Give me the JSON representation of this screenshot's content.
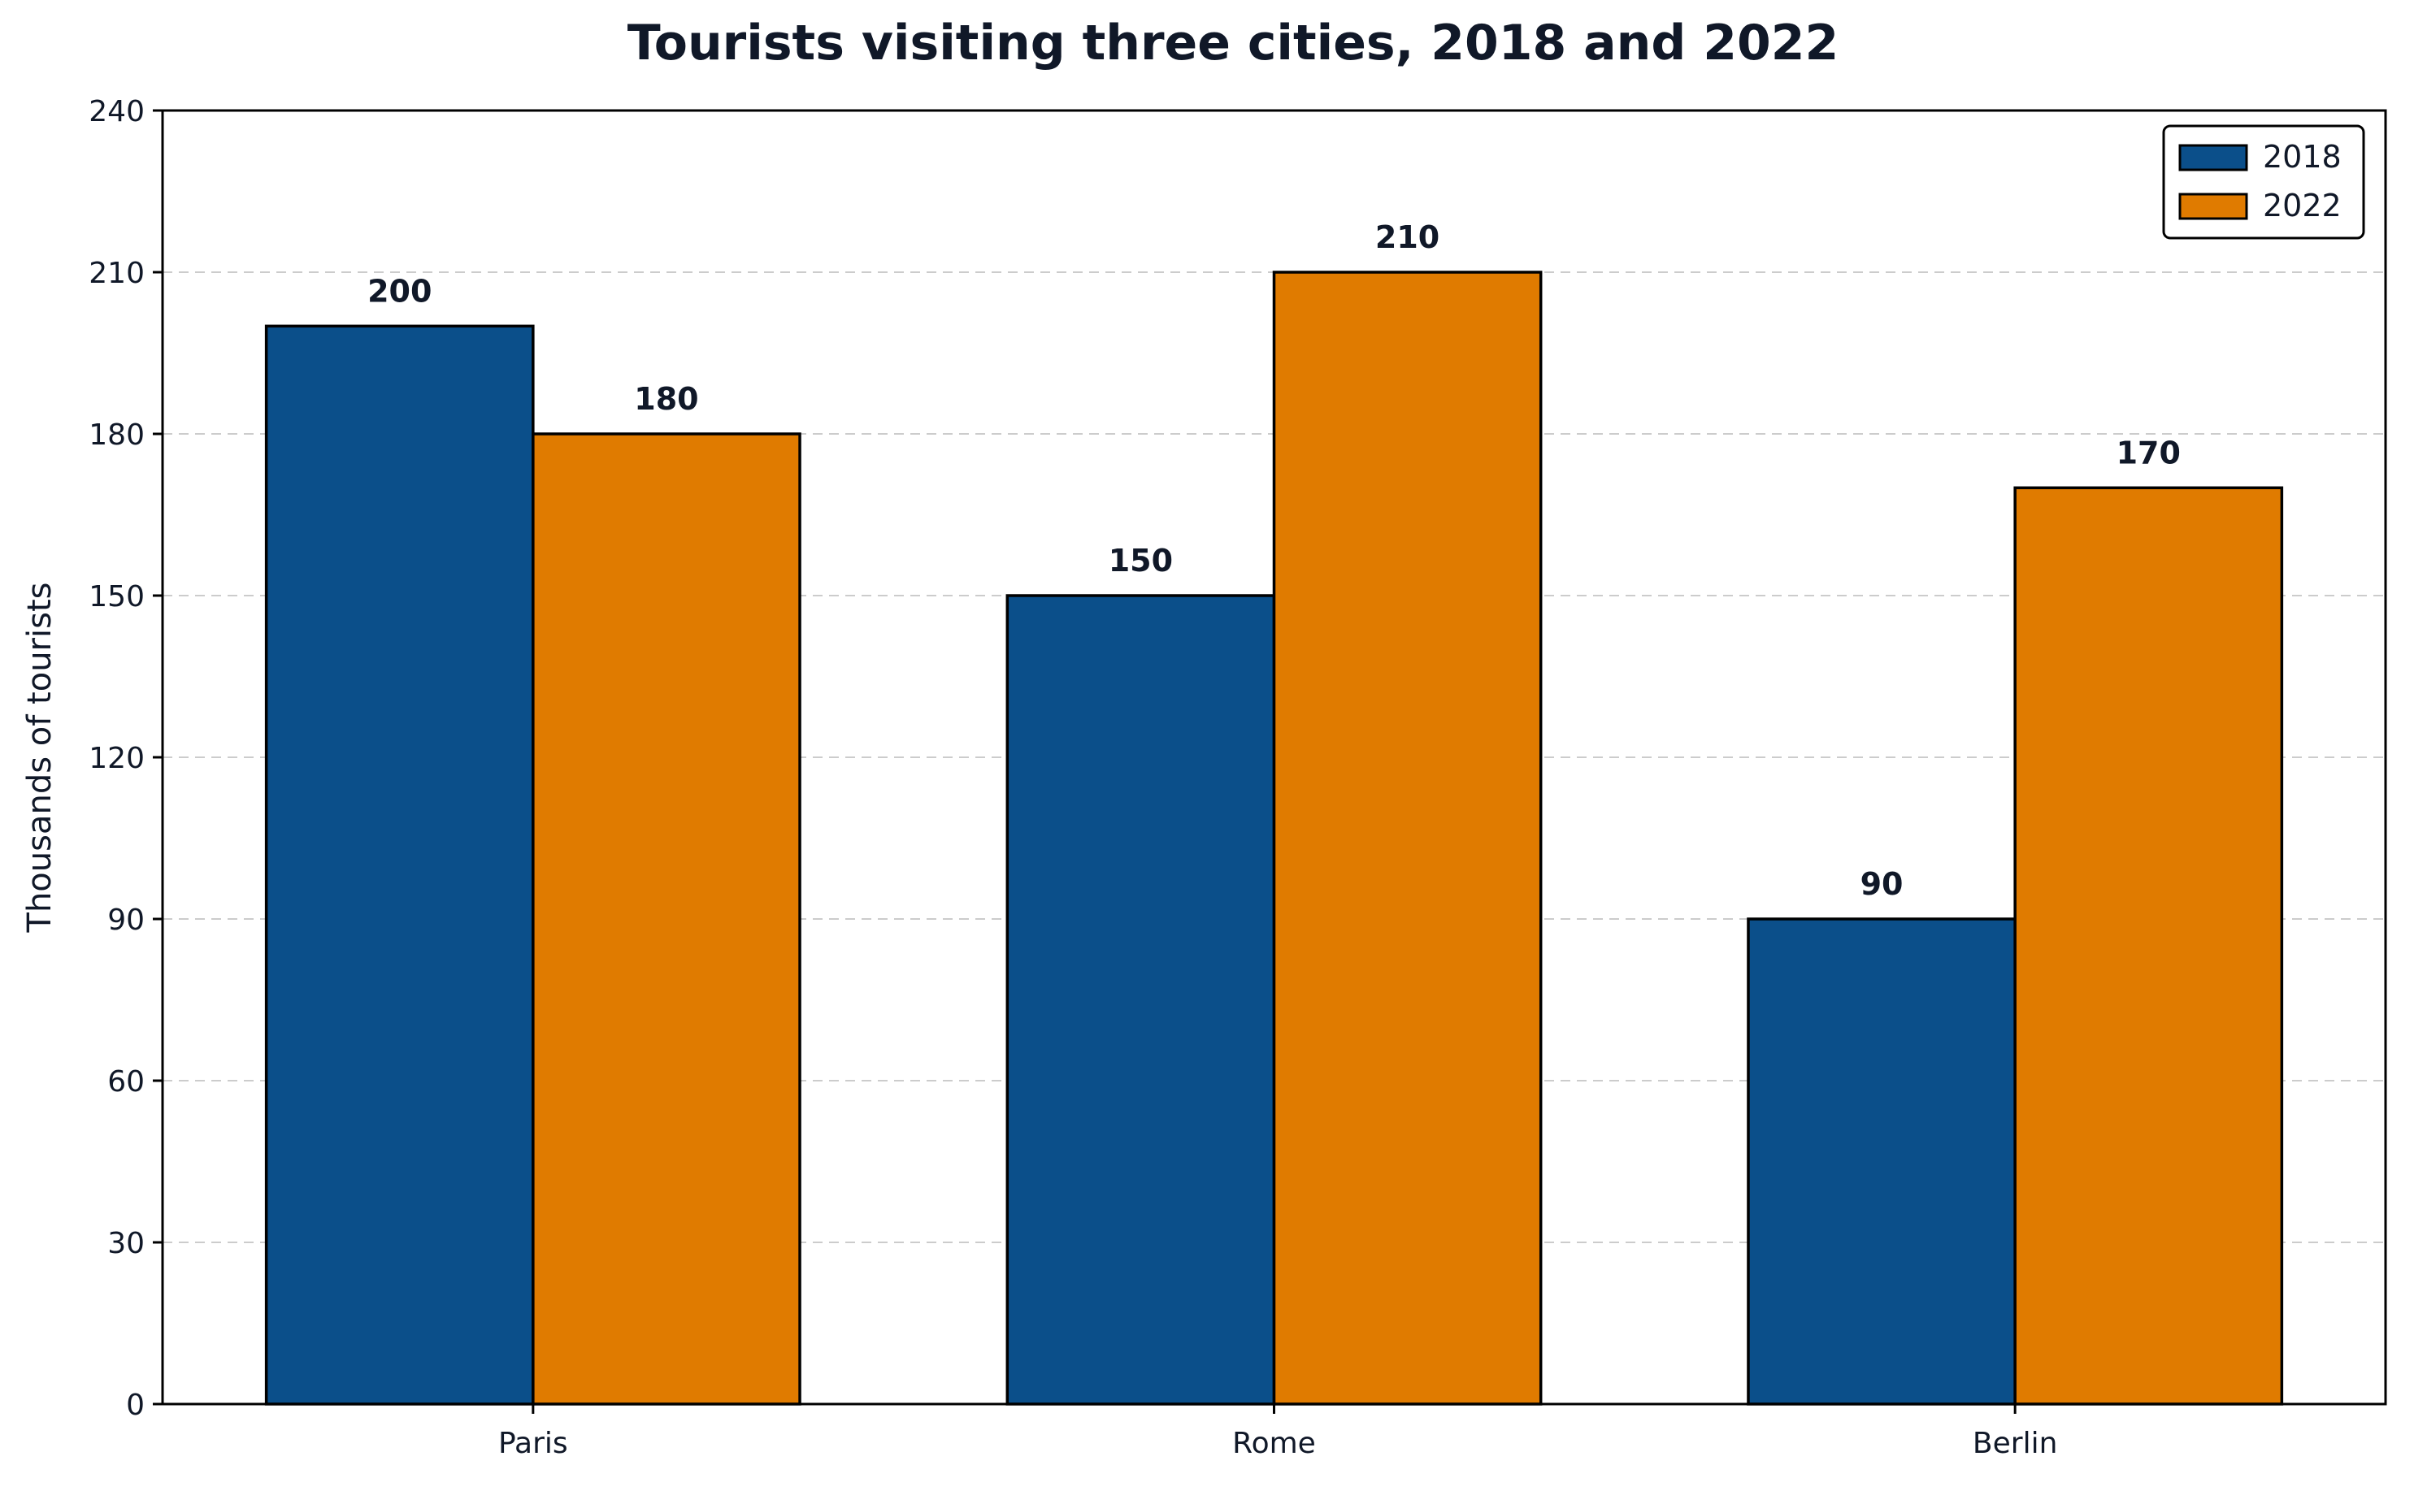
{
  "chart_data": {
    "type": "bar",
    "title": "Tourists visiting three cities, 2018 and 2022",
    "xlabel": "",
    "ylabel": "Thousands of tourists",
    "categories": [
      "Paris",
      "Rome",
      "Berlin"
    ],
    "series": [
      {
        "name": "2018",
        "values": [
          200,
          150,
          90
        ],
        "color": "#0b4f8a"
      },
      {
        "name": "2022",
        "values": [
          180,
          210,
          170
        ],
        "color": "#e07b00"
      }
    ],
    "ylim": [
      0,
      240
    ],
    "yticks": [
      0,
      30,
      60,
      90,
      120,
      150,
      180,
      210,
      240
    ],
    "grid": "horizontal dashed",
    "legend_position": "top-right",
    "data_labels": true
  }
}
